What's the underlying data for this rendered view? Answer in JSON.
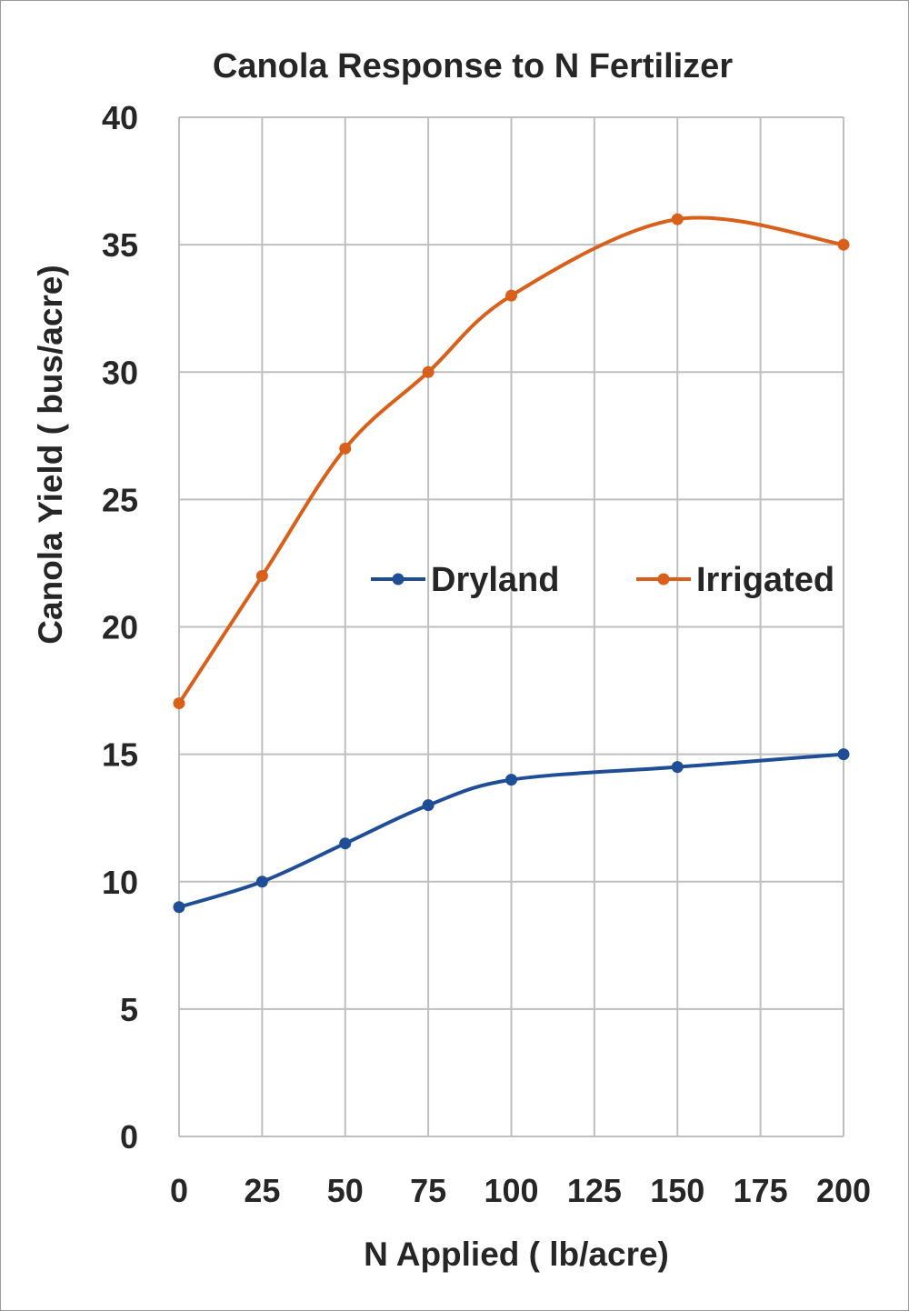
{
  "chart_data": {
    "type": "line",
    "title": "Canola Response to N Fertilizer",
    "xlabel": "N Applied ( lb/acre)",
    "ylabel": "Canola Yield ( bus/acre)",
    "xlim": [
      0,
      200
    ],
    "ylim": [
      0,
      40
    ],
    "xticks": [
      0,
      25,
      50,
      75,
      100,
      125,
      150,
      175,
      200
    ],
    "yticks": [
      0,
      5,
      10,
      15,
      20,
      25,
      30,
      35,
      40
    ],
    "grid": true,
    "legend_position": "center-right",
    "smooth": true,
    "series": [
      {
        "name": "Dryland",
        "color": "#1f4e96",
        "x": [
          0,
          25,
          50,
          75,
          100,
          150,
          200
        ],
        "y": [
          9.0,
          10.0,
          11.5,
          13.0,
          14.0,
          14.5,
          15.0
        ]
      },
      {
        "name": "Irrigated",
        "color": "#d9601a",
        "x": [
          0,
          25,
          50,
          75,
          100,
          150,
          200
        ],
        "y": [
          17.0,
          22.0,
          27.0,
          30.0,
          33.0,
          36.0,
          35.0
        ]
      }
    ]
  }
}
